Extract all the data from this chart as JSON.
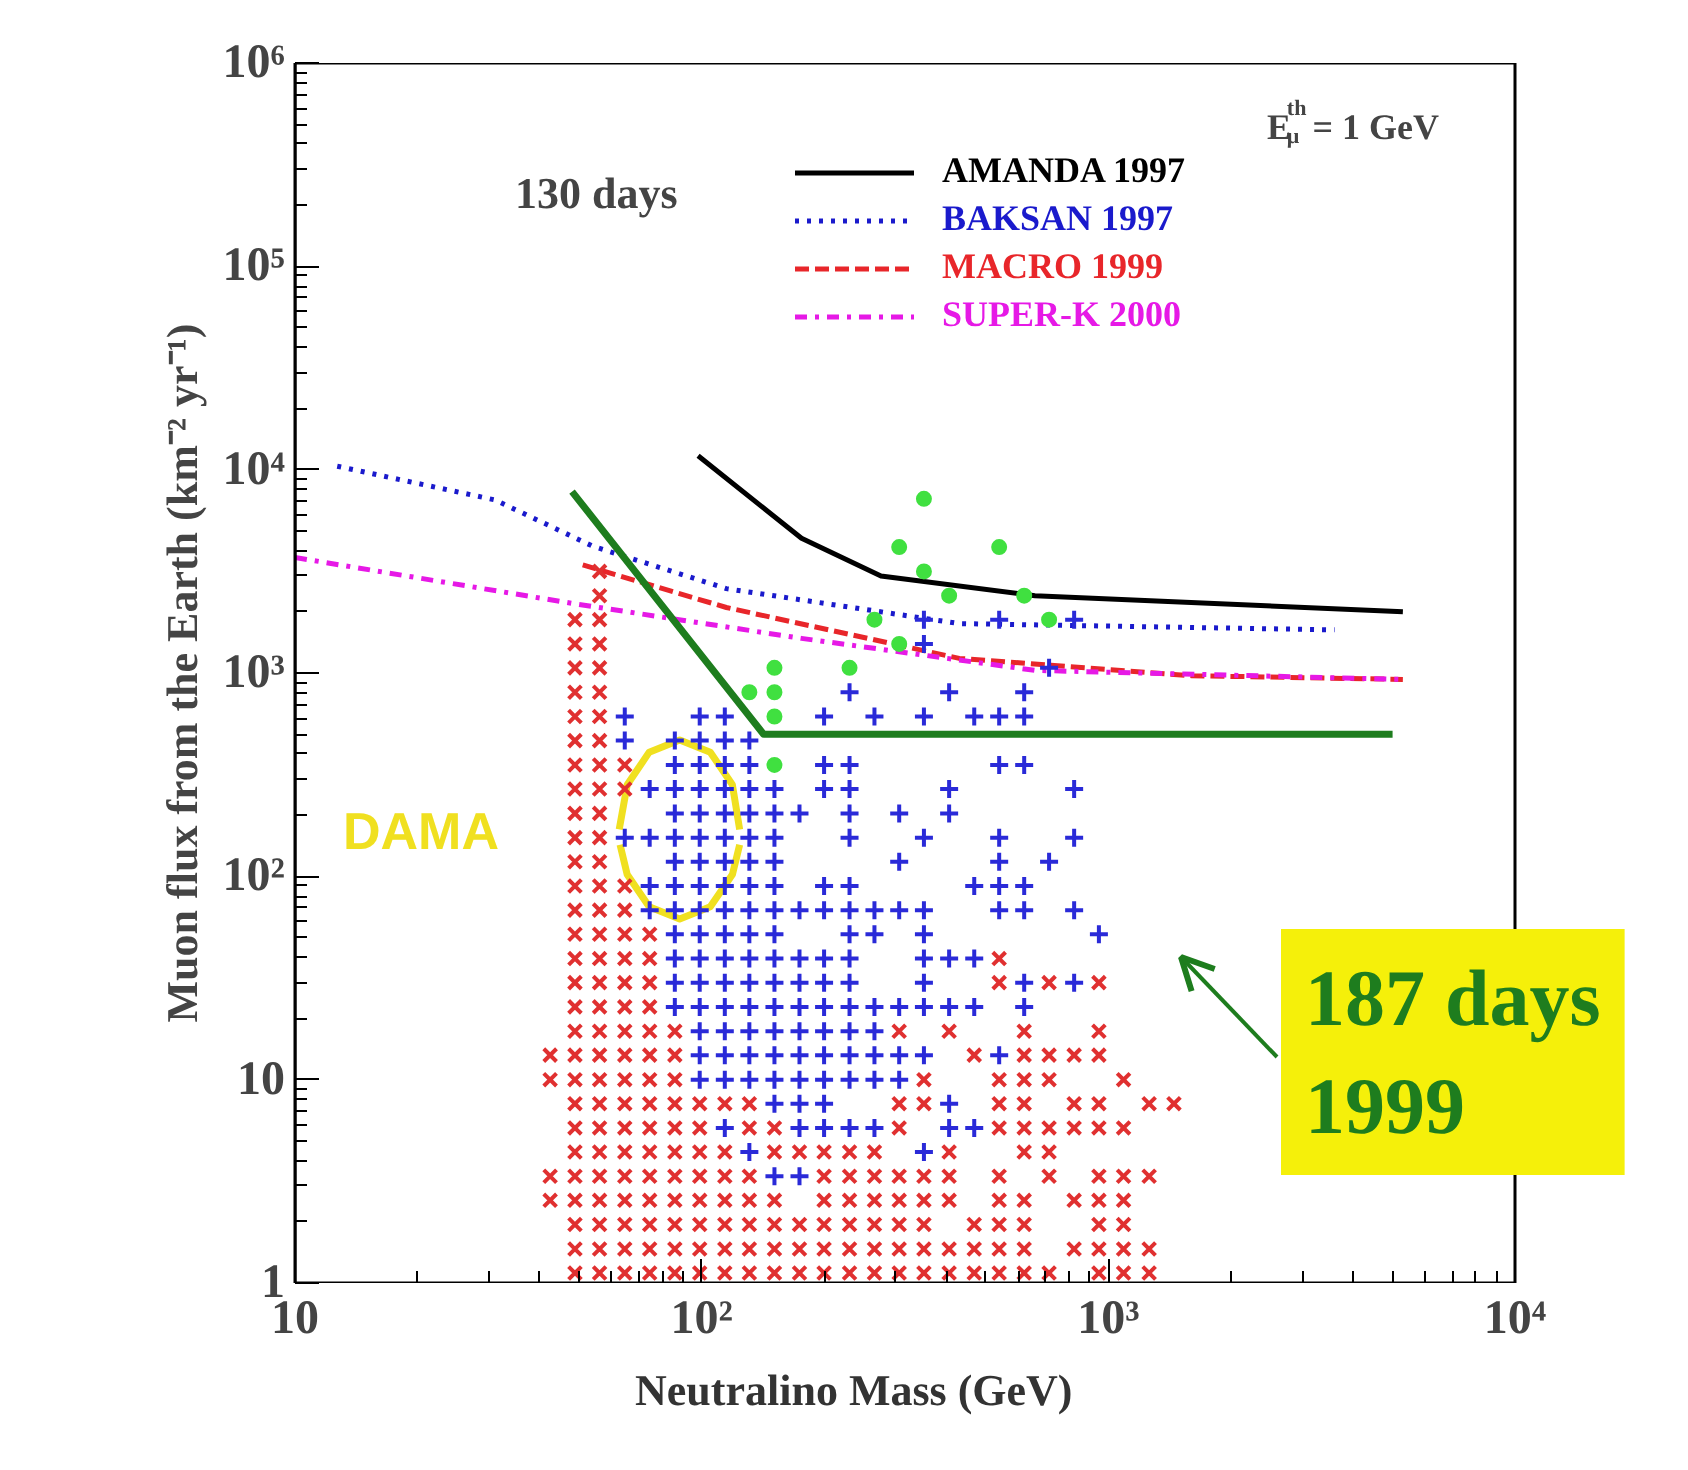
{
  "chart_data": {
    "type": "line",
    "xlabel": "Neutralino Mass (GeV)",
    "ylabel": "Muon flux from the Earth (km⁻² yr⁻¹)",
    "log": "xy",
    "grid": false,
    "legend": "top right",
    "xlim": [
      10,
      10000
    ],
    "ylim": [
      1,
      1000000
    ],
    "xticks": [
      10,
      {
        "value": 100,
        "label": "10²"
      },
      {
        "value": 1000,
        "label": "10³"
      },
      {
        "value": 10000,
        "label": "10⁴"
      }
    ],
    "yticks": [
      1,
      10,
      {
        "value": 100,
        "label": "10²"
      },
      {
        "value": 1000,
        "label": "10³"
      },
      {
        "value": 10000,
        "label": "10⁴"
      },
      {
        "value": 100000,
        "label": "10⁵"
      },
      {
        "value": 1000000,
        "label": "10⁶"
      }
    ],
    "annotations": [
      "E$^{th}$$_{μ}$ = 1 GeV",
      "130 days",
      "DAMA",
      "187 days\n1999"
    ],
    "series": [
      {
        "name": "AMANDA 1997",
        "color": "#000000",
        "line_style": "solid",
        "x": [
          98,
          176,
          276,
          660,
          5300
        ],
        "values": [
          11700,
          4600,
          3000,
          2400,
          2000
        ]
      },
      {
        "name": "BAKSAN 1997",
        "color": "#1a1acc",
        "line_style": "dotted",
        "x": [
          12.7,
          31,
          54,
          115,
          430,
          3600
        ],
        "values": [
          10400,
          7100,
          4200,
          2600,
          1750,
          1630
        ]
      },
      {
        "name": "MACRO 1999",
        "color": "#e8262a",
        "line_style": "dashed",
        "x": [
          51,
          115,
          430,
          1600,
          5300
        ],
        "values": [
          3400,
          2100,
          1180,
          970,
          930
        ]
      },
      {
        "name": "SUPER-K 2000",
        "color": "#e619e6",
        "line_style": "dashdot",
        "x": [
          10,
          48,
          176,
          660,
          5300
        ],
        "values": [
          3700,
          2200,
          1480,
          1030,
          930
        ]
      },
      {
        "color": "#1e7d1e",
        "line_style": "solid",
        "x": [
          48,
          142,
          5000
        ],
        "values": [
          7800,
          500,
          500
        ]
      },
      {
        "color": "#f0e020",
        "line_style": "solid",
        "x": [
          62.7,
          65.6,
          74.3,
          88.3,
          105,
          119,
          124
        ],
        "values": [
          170,
          282,
          408,
          468,
          408,
          282,
          170
        ]
      },
      {
        "color": "#f0e020",
        "line_style": "solid",
        "x": [
          63,
          65.6,
          74.3,
          88.3,
          105,
          119,
          124
        ],
        "values": [
          143,
          102,
          70.8,
          61.7,
          70.8,
          102,
          143
        ]
      },
      {
        "type": "scatter",
        "marker": "x",
        "color": "#e03030",
        "x": [
          48.8,
          56.1,
          64.7,
          74.5,
          85.9,
          98.9,
          114,
          131,
          151,
          174,
          200,
          231,
          266,
          306,
          352,
          406,
          468,
          539,
          621,
          715,
          948,
          1090,
          1260,
          48.8,
          56.1,
          64.7,
          74.5,
          85.9,
          98.9,
          114,
          131,
          151,
          174,
          200,
          231,
          266,
          306,
          352,
          406,
          468,
          539,
          621,
          824,
          948,
          1090,
          1260,
          48.8,
          56.1,
          64.7,
          74.5,
          85.9,
          98.9,
          114,
          131,
          151,
          174,
          200,
          231,
          266,
          306,
          352,
          468,
          539,
          621,
          948,
          1090,
          42.4,
          48.8,
          56.1,
          64.7,
          74.5,
          85.9,
          98.9,
          114,
          131,
          151,
          200,
          231,
          266,
          306,
          352,
          406,
          539,
          621,
          824,
          948,
          1090,
          42.4,
          48.8,
          56.1,
          64.7,
          74.5,
          85.9,
          98.9,
          114,
          131,
          200,
          231,
          266,
          306,
          352,
          406,
          539,
          715,
          948,
          1090,
          1260,
          48.8,
          56.1,
          64.7,
          74.5,
          85.9,
          98.9,
          114,
          151,
          174,
          200,
          231,
          266,
          406,
          621,
          715,
          48.8,
          56.1,
          64.7,
          74.5,
          85.9,
          98.9,
          131,
          151,
          306,
          539,
          621,
          715,
          824,
          948,
          1090,
          48.8,
          56.1,
          64.7,
          74.5,
          85.9,
          98.9,
          114,
          131,
          306,
          352,
          539,
          621,
          824,
          948,
          1260,
          1450,
          42.4,
          48.8,
          56.1,
          64.7,
          74.5,
          85.9,
          352,
          539,
          621,
          715,
          1090,
          42.4,
          48.8,
          56.1,
          64.7,
          74.5,
          85.9,
          468,
          621,
          715,
          824,
          948,
          48.8,
          56.1,
          64.7,
          74.5,
          85.9,
          306,
          406,
          621,
          948,
          48.8,
          56.1,
          64.7,
          74.5,
          48.8,
          56.1,
          64.7,
          74.5,
          539,
          715,
          948,
          48.8,
          56.1,
          64.7,
          74.5,
          539,
          48.8,
          56.1,
          64.7,
          74.5,
          48.8,
          56.1,
          64.7,
          48.8,
          56.1,
          64.7,
          48.8,
          56.1,
          48.8,
          56.1,
          48.8,
          56.1,
          48.8,
          56.1,
          64.7,
          48.8,
          56.1,
          64.7,
          48.8,
          56.1,
          48.8,
          56.1,
          48.8,
          56.1,
          48.8,
          56.1,
          48.8,
          56.1,
          48.8,
          56.1,
          56.1,
          56.1
        ],
        "values": [
          1.12,
          1.12,
          1.12,
          1.12,
          1.12,
          1.12,
          1.12,
          1.12,
          1.12,
          1.12,
          1.12,
          1.12,
          1.12,
          1.12,
          1.12,
          1.12,
          1.12,
          1.12,
          1.12,
          1.12,
          1.12,
          1.12,
          1.12,
          1.47,
          1.47,
          1.47,
          1.47,
          1.47,
          1.47,
          1.47,
          1.47,
          1.47,
          1.47,
          1.47,
          1.47,
          1.47,
          1.47,
          1.47,
          1.47,
          1.47,
          1.47,
          1.47,
          1.47,
          1.47,
          1.47,
          1.47,
          1.94,
          1.94,
          1.94,
          1.94,
          1.94,
          1.94,
          1.94,
          1.94,
          1.94,
          1.94,
          1.94,
          1.94,
          1.94,
          1.94,
          1.94,
          1.94,
          1.94,
          1.94,
          1.94,
          1.94,
          2.55,
          2.55,
          2.55,
          2.55,
          2.55,
          2.55,
          2.55,
          2.55,
          2.55,
          2.55,
          2.55,
          2.55,
          2.55,
          2.55,
          2.55,
          2.55,
          2.55,
          2.55,
          2.55,
          2.55,
          2.55,
          3.35,
          3.35,
          3.35,
          3.35,
          3.35,
          3.35,
          3.35,
          3.35,
          3.35,
          3.35,
          3.35,
          3.35,
          3.35,
          3.35,
          3.35,
          3.35,
          3.35,
          3.35,
          3.35,
          3.35,
          4.41,
          4.41,
          4.41,
          4.41,
          4.41,
          4.41,
          4.41,
          4.41,
          4.41,
          4.41,
          4.41,
          4.41,
          4.41,
          4.41,
          4.41,
          5.79,
          5.79,
          5.79,
          5.79,
          5.79,
          5.79,
          5.79,
          5.79,
          5.79,
          5.79,
          5.79,
          5.79,
          5.79,
          5.79,
          5.79,
          7.62,
          7.62,
          7.62,
          7.62,
          7.62,
          7.62,
          7.62,
          7.62,
          7.62,
          7.62,
          7.62,
          7.62,
          7.62,
          7.62,
          7.62,
          7.62,
          10,
          10,
          10,
          10,
          10,
          10,
          10,
          10,
          10,
          10,
          10,
          13.2,
          13.2,
          13.2,
          13.2,
          13.2,
          13.2,
          13.2,
          13.2,
          13.2,
          13.2,
          13.2,
          17.3,
          17.3,
          17.3,
          17.3,
          17.3,
          17.3,
          17.3,
          17.3,
          17.3,
          22.8,
          22.8,
          22.8,
          22.8,
          30,
          30,
          30,
          30,
          30,
          30,
          30,
          39.4,
          39.4,
          39.4,
          39.4,
          39.4,
          51.9,
          51.9,
          51.9,
          51.9,
          68.2,
          68.2,
          68.2,
          89.7,
          89.7,
          89.7,
          118,
          118,
          155,
          155,
          204,
          204,
          269,
          269,
          269,
          353,
          353,
          353,
          465,
          465,
          611,
          611,
          804,
          804,
          1060,
          1060,
          1390,
          1390,
          1830,
          1830,
          2400,
          3160
        ]
      },
      {
        "type": "scatter",
        "marker": "cross",
        "color": "#2a2ad8",
        "x": [
          151,
          174,
          131,
          352,
          114,
          174,
          200,
          231,
          266,
          406,
          468,
          151,
          174,
          200,
          406,
          98.9,
          114,
          131,
          151,
          174,
          200,
          231,
          266,
          306,
          98.9,
          114,
          131,
          151,
          174,
          200,
          231,
          266,
          306,
          352,
          539,
          98.9,
          114,
          131,
          151,
          174,
          200,
          231,
          266,
          85.9,
          98.9,
          114,
          131,
          151,
          174,
          200,
          231,
          266,
          306,
          352,
          406,
          468,
          621,
          85.9,
          98.9,
          114,
          131,
          151,
          174,
          200,
          231,
          352,
          621,
          824,
          85.9,
          98.9,
          114,
          131,
          151,
          174,
          200,
          231,
          352,
          406,
          468,
          85.9,
          98.9,
          114,
          131,
          151,
          231,
          266,
          352,
          948,
          74.5,
          85.9,
          98.9,
          114,
          131,
          151,
          174,
          200,
          231,
          266,
          306,
          352,
          539,
          621,
          824,
          74.5,
          85.9,
          98.9,
          114,
          131,
          151,
          200,
          231,
          468,
          539,
          621,
          85.9,
          98.9,
          114,
          131,
          151,
          306,
          539,
          715,
          64.7,
          74.5,
          85.9,
          98.9,
          114,
          131,
          151,
          231,
          352,
          539,
          824,
          85.9,
          98.9,
          114,
          131,
          151,
          174,
          231,
          306,
          406,
          74.5,
          85.9,
          98.9,
          114,
          131,
          151,
          200,
          231,
          406,
          824,
          85.9,
          98.9,
          114,
          131,
          200,
          231,
          539,
          621,
          64.7,
          85.9,
          98.9,
          114,
          131,
          64.7,
          98.9,
          114,
          200,
          266,
          352,
          468,
          539,
          621,
          231,
          406,
          621,
          715,
          352,
          352,
          539,
          824
        ],
        "values": [
          3.35,
          3.35,
          4.41,
          4.41,
          5.79,
          5.79,
          5.79,
          5.79,
          5.79,
          5.79,
          5.79,
          7.62,
          7.62,
          7.62,
          7.62,
          10,
          10,
          10,
          10,
          10,
          10,
          10,
          10,
          10,
          13.2,
          13.2,
          13.2,
          13.2,
          13.2,
          13.2,
          13.2,
          13.2,
          13.2,
          13.2,
          13.2,
          17.3,
          17.3,
          17.3,
          17.3,
          17.3,
          17.3,
          17.3,
          17.3,
          22.8,
          22.8,
          22.8,
          22.8,
          22.8,
          22.8,
          22.8,
          22.8,
          22.8,
          22.8,
          22.8,
          22.8,
          22.8,
          22.8,
          30,
          30,
          30,
          30,
          30,
          30,
          30,
          30,
          30,
          30,
          30,
          39.4,
          39.4,
          39.4,
          39.4,
          39.4,
          39.4,
          39.4,
          39.4,
          39.4,
          39.4,
          39.4,
          51.9,
          51.9,
          51.9,
          51.9,
          51.9,
          51.9,
          51.9,
          51.9,
          51.9,
          68.2,
          68.2,
          68.2,
          68.2,
          68.2,
          68.2,
          68.2,
          68.2,
          68.2,
          68.2,
          68.2,
          68.2,
          68.2,
          68.2,
          68.2,
          89.7,
          89.7,
          89.7,
          89.7,
          89.7,
          89.7,
          89.7,
          89.7,
          89.7,
          89.7,
          89.7,
          118,
          118,
          118,
          118,
          118,
          118,
          118,
          118,
          155,
          155,
          155,
          155,
          155,
          155,
          155,
          155,
          155,
          155,
          155,
          204,
          204,
          204,
          204,
          204,
          204,
          204,
          204,
          204,
          269,
          269,
          269,
          269,
          269,
          269,
          269,
          269,
          269,
          269,
          353,
          353,
          353,
          353,
          353,
          353,
          353,
          353,
          465,
          465,
          465,
          465,
          465,
          611,
          611,
          611,
          611,
          611,
          611,
          611,
          611,
          611,
          804,
          804,
          804,
          1060,
          1390,
          1830,
          1830,
          1830
        ]
      },
      {
        "type": "scatter",
        "marker": "circle",
        "color": "#40e040",
        "x": [
          151,
          151,
          151,
          131,
          151,
          231,
          306,
          266,
          715,
          406,
          621,
          352,
          306,
          539,
          352
        ],
        "values": [
          353,
          611,
          804,
          804,
          1060,
          1060,
          1390,
          1830,
          1830,
          2400,
          2400,
          3160,
          4160,
          4160,
          7190
        ]
      }
    ]
  }
}
